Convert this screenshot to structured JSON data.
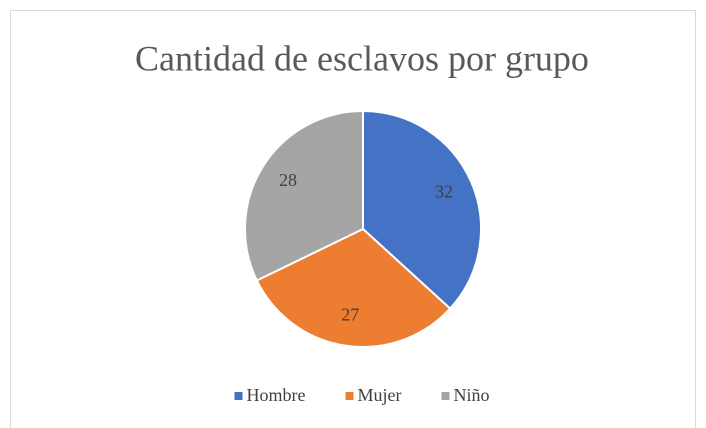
{
  "chart_data": {
    "type": "pie",
    "title": "Cantidad de esclavos por grupo",
    "categories": [
      "Hombre",
      "Mujer",
      "Niño"
    ],
    "values": [
      32,
      27,
      28
    ],
    "colors": [
      "#4472c4",
      "#ed7d31",
      "#a5a5a5"
    ],
    "legend": "bottom"
  }
}
